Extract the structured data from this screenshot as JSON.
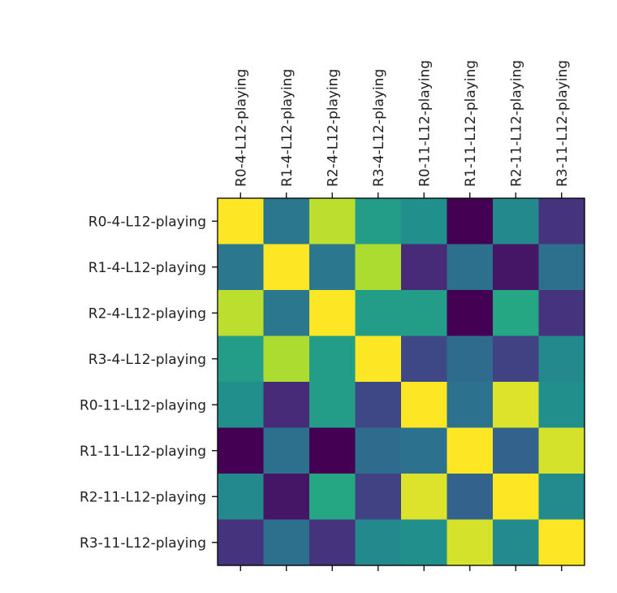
{
  "chart_data": {
    "type": "heatmap",
    "x_labels": [
      "R0-4-L12-playing",
      "R1-4-L12-playing",
      "R2-4-L12-playing",
      "R3-4-L12-playing",
      "R0-11-L12-playing",
      "R1-11-L12-playing",
      "R2-11-L12-playing",
      "R3-11-L12-playing"
    ],
    "y_labels": [
      "R0-4-L12-playing",
      "R1-4-L12-playing",
      "R2-4-L12-playing",
      "R3-4-L12-playing",
      "R0-11-L12-playing",
      "R1-11-L12-playing",
      "R2-11-L12-playing",
      "R3-11-L12-playing"
    ],
    "x_label_position": "top",
    "colormap": "viridis",
    "value_range": [
      0,
      1
    ],
    "values": [
      [
        1.0,
        0.4,
        0.9,
        0.55,
        0.5,
        0.0,
        0.47,
        0.15
      ],
      [
        0.4,
        1.0,
        0.4,
        0.88,
        0.12,
        0.37,
        0.06,
        0.37
      ],
      [
        0.9,
        0.4,
        1.0,
        0.55,
        0.55,
        0.0,
        0.6,
        0.15
      ],
      [
        0.55,
        0.88,
        0.55,
        1.0,
        0.22,
        0.35,
        0.2,
        0.47
      ],
      [
        0.5,
        0.12,
        0.55,
        0.22,
        1.0,
        0.38,
        0.95,
        0.5
      ],
      [
        0.0,
        0.37,
        0.0,
        0.35,
        0.38,
        1.0,
        0.32,
        0.94
      ],
      [
        0.47,
        0.06,
        0.6,
        0.2,
        0.95,
        0.32,
        1.0,
        0.48
      ],
      [
        0.15,
        0.37,
        0.15,
        0.47,
        0.5,
        0.94,
        0.48,
        1.0
      ]
    ],
    "grid": false,
    "legend": "none",
    "title": "",
    "xlabel": "",
    "ylabel": ""
  }
}
